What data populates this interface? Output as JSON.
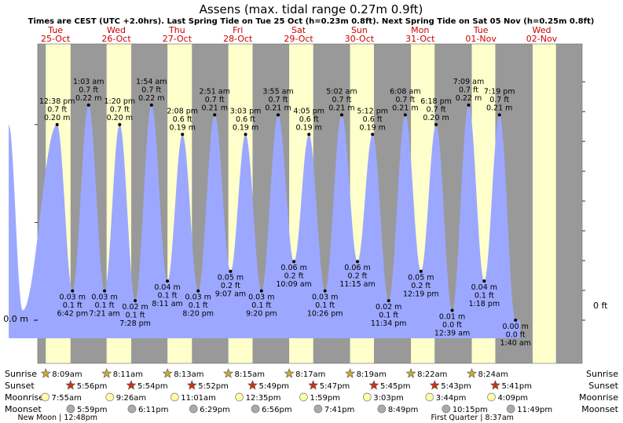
{
  "chart_data": {
    "type": "area",
    "title": "Assens (max. tidal range 0.27m 0.9ft)",
    "subtitle": "Times are CEST (UTC +2.0hrs). Last Spring Tide on Tue 25 Oct (h=0.23m 0.8ft). Next Spring Tide on Sat 05 Nov (h=0.25m 0.8ft)",
    "y_left_label": "0.0 m",
    "y_right_label": "0 ft",
    "ylim_m": [
      -0.05,
      0.27
    ],
    "days": [
      {
        "dow": "Tue",
        "date": "25-Oct"
      },
      {
        "dow": "Wed",
        "date": "26-Oct"
      },
      {
        "dow": "Thu",
        "date": "27-Oct"
      },
      {
        "dow": "Fri",
        "date": "28-Oct"
      },
      {
        "dow": "Sat",
        "date": "29-Oct"
      },
      {
        "dow": "Sun",
        "date": "30-Oct"
      },
      {
        "dow": "Mon",
        "date": "31-Oct"
      },
      {
        "dow": "Tue",
        "date": "01-Nov"
      },
      {
        "dow": "Wed",
        "date": "02-Nov"
      }
    ],
    "tides": [
      {
        "time": "12:38 pm",
        "ft": "0.7 ft",
        "m": "0.20 m",
        "t": 12.63,
        "h": 0.2,
        "type": "high"
      },
      {
        "time": "6:42 pm",
        "ft": "0.1 ft",
        "m": "0.03 m",
        "t": 18.7,
        "h": 0.03,
        "type": "low"
      },
      {
        "time": "1:03 am",
        "ft": "0.7 ft",
        "m": "0.22 m",
        "t": 25.05,
        "h": 0.22,
        "type": "high"
      },
      {
        "time": "7:21 am",
        "ft": "0.1 ft",
        "m": "0.03 m",
        "t": 31.35,
        "h": 0.03,
        "type": "low"
      },
      {
        "time": "1:20 pm",
        "ft": "0.7 ft",
        "m": "0.20 m",
        "t": 37.33,
        "h": 0.2,
        "type": "high"
      },
      {
        "time": "7:28 pm",
        "ft": "0.1 ft",
        "m": "0.02 m",
        "t": 43.47,
        "h": 0.02,
        "type": "low"
      },
      {
        "time": "1:54 am",
        "ft": "0.7 ft",
        "m": "0.22 m",
        "t": 49.9,
        "h": 0.22,
        "type": "high"
      },
      {
        "time": "8:11 am",
        "ft": "0.1 ft",
        "m": "0.04 m",
        "t": 56.18,
        "h": 0.04,
        "type": "low"
      },
      {
        "time": "2:08 pm",
        "ft": "0.6 ft",
        "m": "0.19 m",
        "t": 62.13,
        "h": 0.19,
        "type": "high"
      },
      {
        "time": "8:20 pm",
        "ft": "0.1 ft",
        "m": "0.03 m",
        "t": 68.33,
        "h": 0.03,
        "type": "low"
      },
      {
        "time": "2:51 am",
        "ft": "0.7 ft",
        "m": "0.21 m",
        "t": 74.85,
        "h": 0.21,
        "type": "high"
      },
      {
        "time": "9:07 am",
        "ft": "0.2 ft",
        "m": "0.05 m",
        "t": 81.12,
        "h": 0.05,
        "type": "low"
      },
      {
        "time": "3:03 pm",
        "ft": "0.6 ft",
        "m": "0.19 m",
        "t": 87.05,
        "h": 0.19,
        "type": "high"
      },
      {
        "time": "9:20 pm",
        "ft": "0.1 ft",
        "m": "0.03 m",
        "t": 93.33,
        "h": 0.03,
        "type": "low"
      },
      {
        "time": "3:55 am",
        "ft": "0.7 ft",
        "m": "0.21 m",
        "t": 99.92,
        "h": 0.21,
        "type": "high"
      },
      {
        "time": "10:09 am",
        "ft": "0.2 ft",
        "m": "0.06 m",
        "t": 106.15,
        "h": 0.06,
        "type": "low"
      },
      {
        "time": "4:05 pm",
        "ft": "0.6 ft",
        "m": "0.19 m",
        "t": 112.08,
        "h": 0.19,
        "type": "high"
      },
      {
        "time": "10:26 pm",
        "ft": "0.1 ft",
        "m": "0.03 m",
        "t": 118.43,
        "h": 0.03,
        "type": "low"
      },
      {
        "time": "5:02 am",
        "ft": "0.7 ft",
        "m": "0.21 m",
        "t": 125.03,
        "h": 0.21,
        "type": "high"
      },
      {
        "time": "11:15 am",
        "ft": "0.2 ft",
        "m": "0.06 m",
        "t": 131.25,
        "h": 0.06,
        "type": "low"
      },
      {
        "time": "5:12 pm",
        "ft": "0.6 ft",
        "m": "0.19 m",
        "t": 137.2,
        "h": 0.19,
        "type": "high"
      },
      {
        "time": "11:34 pm",
        "ft": "0.1 ft",
        "m": "0.02 m",
        "t": 143.57,
        "h": 0.02,
        "type": "low"
      },
      {
        "time": "6:08 am",
        "ft": "0.7 ft",
        "m": "0.21 m",
        "t": 150.13,
        "h": 0.21,
        "type": "high"
      },
      {
        "time": "12:19 pm",
        "ft": "0.2 ft",
        "m": "0.05 m",
        "t": 156.32,
        "h": 0.05,
        "type": "low"
      },
      {
        "time": "6:18 pm",
        "ft": "0.7 ft",
        "m": "0.20 m",
        "t": 162.3,
        "h": 0.2,
        "type": "high"
      },
      {
        "time": "12:39 am",
        "ft": "0.0 ft",
        "m": "0.01 m",
        "t": 168.65,
        "h": 0.01,
        "type": "low"
      },
      {
        "time": "7:09 am",
        "ft": "0.7 ft",
        "m": "0.22 m",
        "t": 175.15,
        "h": 0.22,
        "type": "high"
      },
      {
        "time": "1:18 pm",
        "ft": "0.1 ft",
        "m": "0.04 m",
        "t": 181.3,
        "h": 0.04,
        "type": "low"
      },
      {
        "time": "7:19 pm",
        "ft": "0.7 ft",
        "m": "0.21 m",
        "t": 187.32,
        "h": 0.21,
        "type": "high"
      },
      {
        "time": "1:40 am",
        "ft": "0.0 ft",
        "m": "0.00 m",
        "t": 193.67,
        "h": 0.0,
        "type": "low"
      }
    ],
    "daylight": [
      [
        8.15,
        17.93
      ],
      [
        32.18,
        41.9
      ],
      [
        56.22,
        65.87
      ],
      [
        80.25,
        89.82
      ],
      [
        104.28,
        113.78
      ],
      [
        128.32,
        137.75
      ],
      [
        152.37,
        161.72
      ],
      [
        176.4,
        185.68
      ],
      [
        200.43,
        209.65
      ]
    ],
    "rows": [
      {
        "label": "Sunrise",
        "times": [
          "8:09am",
          "8:11am",
          "8:13am",
          "8:15am",
          "8:17am",
          "8:19am",
          "8:22am",
          "8:24am"
        ],
        "icon": "sunrise-icon"
      },
      {
        "label": "Sunset",
        "times": [
          "5:56pm",
          "5:54pm",
          "5:52pm",
          "5:49pm",
          "5:47pm",
          "5:45pm",
          "5:43pm",
          "5:41pm"
        ],
        "icon": "sunset-icon"
      },
      {
        "label": "Moonrise",
        "times": [
          "7:55am",
          "9:26am",
          "11:01am",
          "12:35pm",
          "1:59pm",
          "3:03pm",
          "3:44pm",
          "4:09pm"
        ],
        "icon": "moonrise-icon"
      },
      {
        "label": "Moonset",
        "times": [
          "5:59pm",
          "6:11pm",
          "6:29pm",
          "6:56pm",
          "7:41pm",
          "8:49pm",
          "10:15pm",
          "11:49pm"
        ],
        "icon": "moonset-icon"
      }
    ],
    "sunrise_t": [
      8.15,
      32.18,
      56.22,
      80.25,
      104.28,
      128.32,
      152.37,
      176.4
    ],
    "sunset_t": [
      17.93,
      41.9,
      65.87,
      89.82,
      113.78,
      137.75,
      161.72,
      185.68
    ],
    "moonrise_t": [
      7.92,
      33.43,
      59.02,
      84.58,
      109.98,
      135.05,
      159.73,
      184.15
    ],
    "moonset_t": [
      17.98,
      42.18,
      66.48,
      90.93,
      115.68,
      140.82,
      166.25,
      191.82
    ],
    "phases": [
      {
        "text": "New Moon | 12:48pm",
        "t": 12.8
      },
      {
        "text": "First Quarter | 8:37am",
        "t": 176.62
      }
    ],
    "colors": {
      "night": "#999999",
      "day": "#ffffcc",
      "water": "#9ca8ff",
      "day_label": "#cc0000",
      "sun": "#ccaa33",
      "sunset": "#cc3311",
      "moonrise": "#ffffaa",
      "moonset": "#aaaaaa"
    }
  }
}
